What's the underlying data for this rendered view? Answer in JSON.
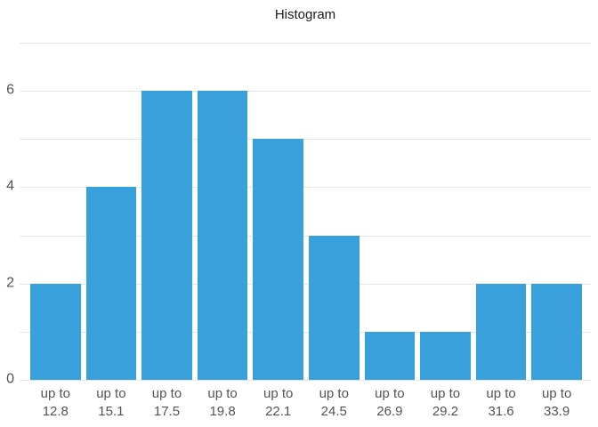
{
  "chart_data": {
    "type": "bar",
    "subtype": "histogram",
    "title": "Histogram",
    "categories": [
      "up to 12.8",
      "up to 15.1",
      "up to 17.5",
      "up to 19.8",
      "up to 22.1",
      "up to 24.5",
      "up to 26.9",
      "up to 29.2",
      "up to 31.6",
      "up to 33.9"
    ],
    "values": [
      2,
      4,
      6,
      6,
      5,
      3,
      1,
      1,
      2,
      2
    ],
    "xlabel": "",
    "ylabel": "",
    "ylim": [
      0,
      7
    ],
    "grid_step": 1,
    "grid": "horizontal lines every 1 unit",
    "ytick_labels": [
      0,
      2,
      4,
      6
    ],
    "legend": "none",
    "colors": {
      "bar": "#38a1db",
      "gridline": "#e6e6e6",
      "axis_text": "#545454",
      "title_text": "#1a1a1a"
    }
  }
}
